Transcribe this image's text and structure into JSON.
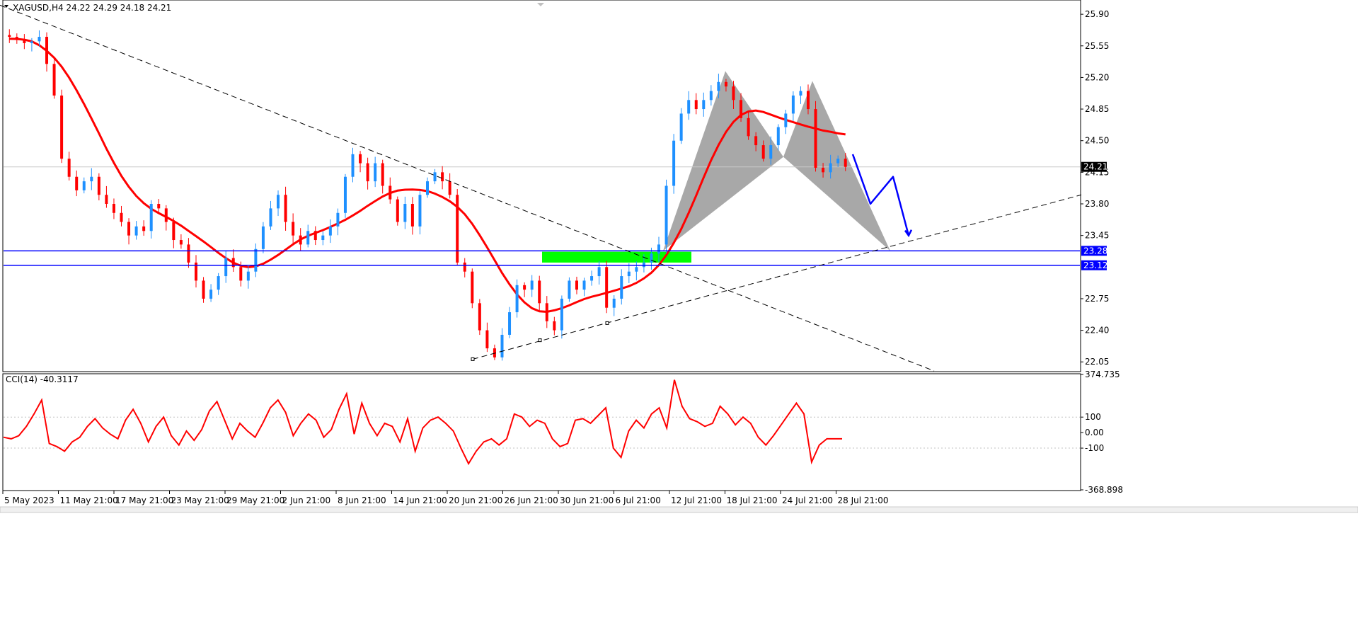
{
  "symbol_header": "XAGUSD,H4  24.22 24.29 24.18 24.21",
  "colors": {
    "bull": "#1e90ff",
    "bear": "#ff0000",
    "ma": "#ff0000",
    "support": "#0000ff",
    "zone": "#00ff00",
    "pattern": "#999999",
    "cci": "#ff0000"
  },
  "chart_data": [
    {
      "type": "candlestick",
      "title": "XAGUSD,H4  24.22 24.29 24.18 24.21",
      "ylim": [
        21.95,
        26.05
      ],
      "y_ticks": [
        "25.90",
        "25.55",
        "25.20",
        "24.85",
        "24.50",
        "24.15",
        "23.80",
        "23.45",
        "22.75",
        "22.40",
        "22.05"
      ],
      "x_ticks": [
        "5 May 2023",
        "11 May 21:00",
        "17 May 21:00",
        "23 May 21:00",
        "29 May 21:00",
        "2 Jun 21:00",
        "8 Jun 21:00",
        "14 Jun 21:00",
        "20 Jun 21:00",
        "26 Jun 21:00",
        "30 Jun 21:00",
        "6 Jul 21:00",
        "12 Jul 21:00",
        "18 Jul 21:00",
        "24 Jul 21:00",
        "28 Jul 21:00"
      ],
      "price_levels": [
        {
          "label": "23.28",
          "value": 23.28
        },
        {
          "label": "23.12",
          "value": 23.12
        }
      ],
      "current_price": {
        "label": "24.21",
        "value": 24.21
      },
      "close_path": [
        25.65,
        25.62,
        25.58,
        25.6,
        25.65,
        25.35,
        25.0,
        24.3,
        24.1,
        23.95,
        24.05,
        24.1,
        23.9,
        23.8,
        23.7,
        23.6,
        23.45,
        23.55,
        23.5,
        23.8,
        23.75,
        23.6,
        23.4,
        23.35,
        23.15,
        22.95,
        22.75,
        22.85,
        23.0,
        23.2,
        23.1,
        22.95,
        23.05,
        23.3,
        23.55,
        23.75,
        23.9,
        23.6,
        23.45,
        23.35,
        23.5,
        23.4,
        23.45,
        23.55,
        23.7,
        24.1,
        24.35,
        24.25,
        24.05,
        24.25,
        24.0,
        23.85,
        23.6,
        23.8,
        23.55,
        23.9,
        24.05,
        24.15,
        24.05,
        23.9,
        23.15,
        23.05,
        22.7,
        22.4,
        22.2,
        22.1,
        22.35,
        22.6,
        22.9,
        22.85,
        22.95,
        22.7,
        22.5,
        22.4,
        22.75,
        22.95,
        22.85,
        22.95,
        23.0,
        23.1,
        22.65,
        22.75,
        23.0,
        23.05,
        23.1,
        23.15,
        23.25,
        23.35,
        24.0,
        24.5,
        24.8,
        24.95,
        24.85,
        24.95,
        25.05,
        25.15,
        25.1,
        24.95,
        24.75,
        24.55,
        24.45,
        24.3,
        24.45,
        24.65,
        24.8,
        25.0,
        25.05,
        24.85,
        24.2,
        24.15,
        24.25,
        24.3,
        24.21
      ],
      "annotations": {
        "desc_trendline": [
          [
            0.0,
            26.0
          ],
          [
            1320.0,
            21.95
          ]
        ],
        "asc_trendline": [
          [
            668.0,
            22.08
          ],
          [
            1528.0,
            23.9
          ]
        ],
        "supply_zone": [
          [
            766.0,
            23.27
          ],
          [
            977.0,
            23.15
          ]
        ],
        "harmonic_pattern": [
          [
            937.0,
            23.28
          ],
          [
            1025.0,
            25.27
          ],
          [
            1107.0,
            24.32
          ],
          [
            1148.0,
            25.16
          ],
          [
            1258.0,
            23.28
          ]
        ],
        "projection_path": [
          [
            1205.0,
            24.35
          ],
          [
            1230.0,
            23.8
          ],
          [
            1262.0,
            24.1
          ],
          [
            1284.0,
            23.45
          ]
        ]
      }
    },
    {
      "type": "line",
      "title": "CCI(14) -40.3117",
      "ylim": [
        -368.898,
        374.735
      ],
      "y_ticks": [
        "374.735",
        "100",
        "0.00",
        "-100",
        "-368.898"
      ],
      "series": [
        {
          "name": "CCI(14)",
          "values": [
            -30,
            -40,
            -20,
            40,
            120,
            210,
            -70,
            -90,
            -120,
            -60,
            -30,
            40,
            90,
            30,
            -10,
            -40,
            80,
            150,
            60,
            -60,
            40,
            100,
            -20,
            -80,
            10,
            -50,
            20,
            140,
            200,
            80,
            -40,
            60,
            10,
            -30,
            60,
            160,
            210,
            130,
            -20,
            60,
            120,
            80,
            -30,
            20,
            150,
            250,
            -10,
            190,
            60,
            -20,
            60,
            40,
            -60,
            90,
            -120,
            30,
            80,
            100,
            60,
            10,
            -100,
            -200,
            -120,
            -60,
            -40,
            -80,
            -40,
            120,
            100,
            40,
            80,
            60,
            -40,
            -90,
            -70,
            80,
            90,
            60,
            110,
            160,
            -100,
            -160,
            10,
            80,
            30,
            120,
            160,
            30,
            340,
            170,
            90,
            70,
            40,
            60,
            170,
            120,
            50,
            100,
            60,
            -30,
            -80,
            -20,
            50,
            120,
            190,
            120,
            -190,
            -80,
            -40,
            -40,
            -40
          ]
        }
      ]
    }
  ]
}
